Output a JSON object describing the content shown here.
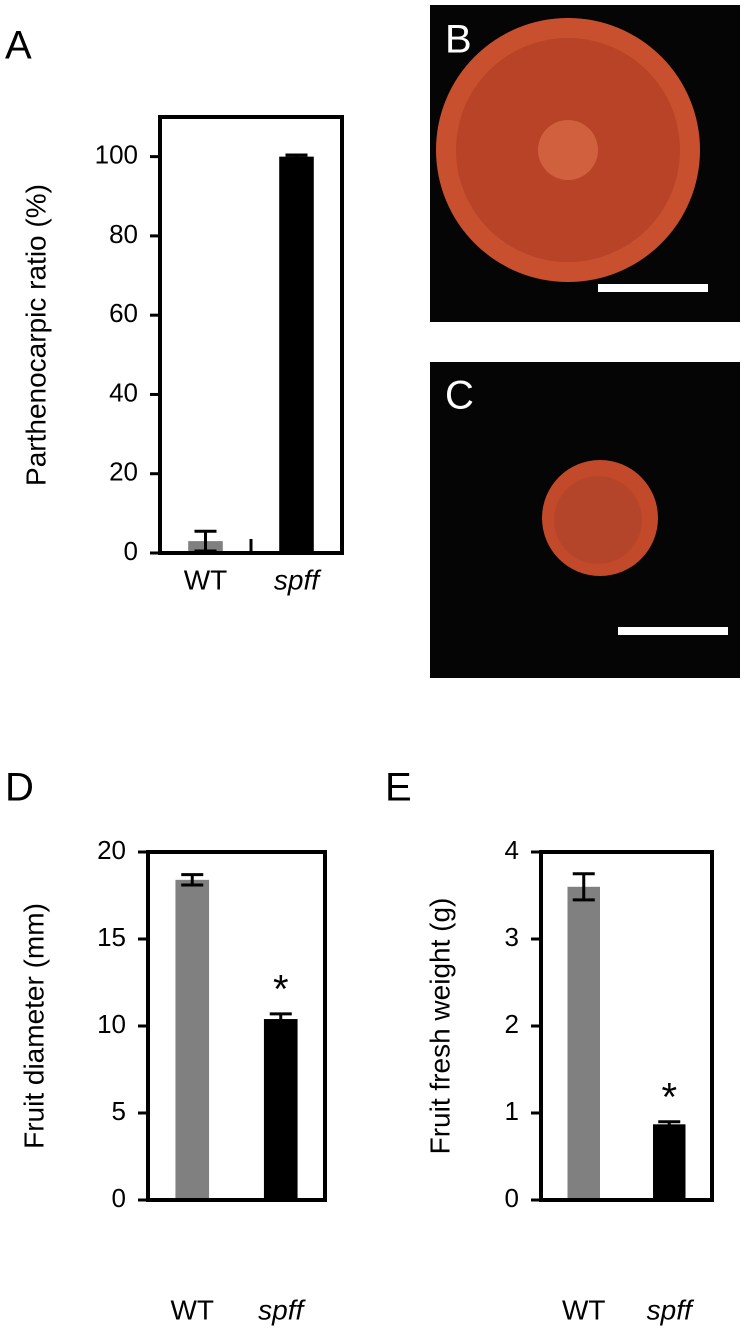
{
  "chart_data": [
    {
      "type": "bar",
      "panel": "A",
      "ylabel": "Parthenocarpic ratio (%)",
      "categories": [
        "WT",
        "spff"
      ],
      "values": [
        3,
        100
      ],
      "errors": [
        2.5,
        0.4
      ],
      "colors": [
        "#808080",
        "#000000"
      ],
      "ylim": [
        0,
        110
      ],
      "yticks": [
        0,
        20,
        40,
        60,
        80,
        100
      ]
    },
    {
      "type": "bar",
      "panel": "D",
      "ylabel": "Fruit diameter (mm)",
      "categories": [
        "WT",
        "spff"
      ],
      "values": [
        18.4,
        10.4
      ],
      "errors": [
        0.3,
        0.3
      ],
      "significance_labels": [
        null,
        "*"
      ],
      "colors": [
        "#808080",
        "#000000"
      ],
      "ylim": [
        0,
        20
      ],
      "yticks": [
        0,
        5,
        10,
        15,
        20
      ]
    },
    {
      "type": "bar",
      "panel": "E",
      "ylabel": "Fruit fresh weight (g)",
      "categories": [
        "WT",
        "spff"
      ],
      "values": [
        3.6,
        0.87
      ],
      "errors": [
        0.15,
        0.03
      ],
      "significance_labels": [
        null,
        "*"
      ],
      "colors": [
        "#808080",
        "#000000"
      ],
      "ylim": [
        0,
        4
      ],
      "yticks": [
        0,
        1,
        2,
        3,
        4
      ]
    }
  ],
  "images": [
    {
      "panel": "B"
    },
    {
      "panel": "C"
    }
  ]
}
